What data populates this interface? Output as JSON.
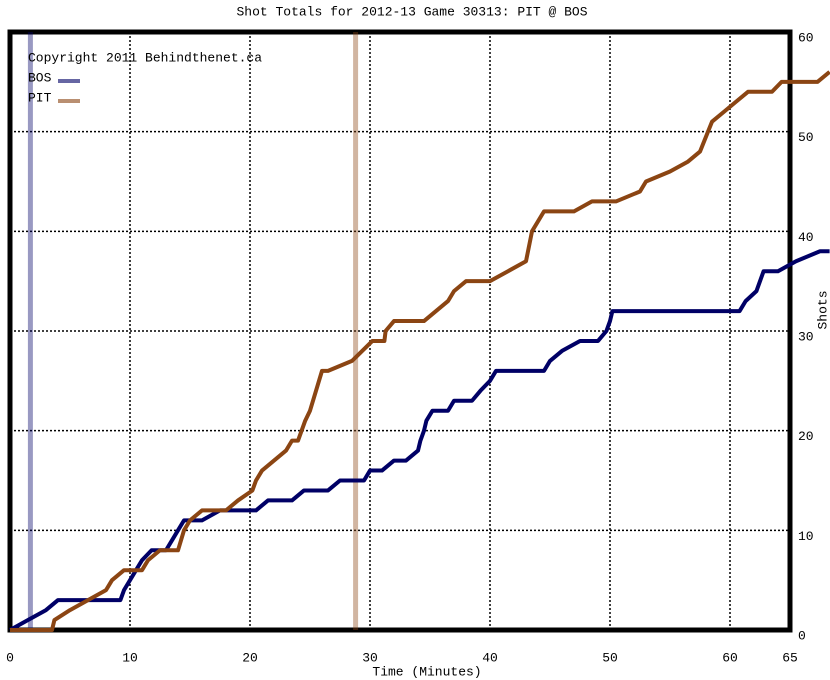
{
  "chart_data": {
    "type": "line",
    "title": "Shot Totals for 2012-13 Game 30313: PIT @ BOS",
    "x_label": "Time (Minutes)",
    "y_label": "Shots",
    "copyright": "Copyright 2011 Behindthenet.ca",
    "xlim": [
      0,
      65
    ],
    "xticks": [
      0,
      10,
      20,
      30,
      40,
      50,
      60,
      65
    ],
    "ylim": [
      0,
      60
    ],
    "yticks": [
      0,
      10,
      20,
      30,
      40,
      50,
      60
    ],
    "grid": true,
    "series": [
      {
        "name": "BOS",
        "color": "#000066",
        "goals": [
          1.7
        ],
        "x": [
          0,
          1.5,
          3,
          4,
          9.2,
          9.5,
          10,
          10.5,
          11,
          11.8,
          13,
          13.5,
          14,
          14.5,
          16,
          17.5,
          20.5,
          21.5,
          23.5,
          24.5,
          26.5,
          27.5,
          29.5,
          30,
          31,
          32,
          33,
          34,
          34.2,
          34.5,
          34.7,
          35.2,
          36.5,
          37,
          38.5,
          39.2,
          40,
          40.5,
          44.5,
          45,
          46,
          47.5,
          49,
          49.7,
          50,
          50.2,
          60.8,
          61.3,
          62.2,
          62.8,
          64,
          65.5,
          67.5,
          68.3
        ],
        "values": [
          0,
          1,
          2,
          3,
          3,
          4,
          5,
          6,
          7,
          8,
          8,
          9,
          10,
          11,
          11,
          12,
          12,
          13,
          13,
          14,
          14,
          15,
          15,
          16,
          16,
          17,
          17,
          18,
          19,
          20,
          21,
          22,
          22,
          23,
          23,
          24,
          25,
          26,
          26,
          27,
          28,
          29,
          29,
          30,
          31,
          32,
          32,
          33,
          34,
          36,
          36,
          37,
          38,
          38
        ]
      },
      {
        "name": "PIT",
        "color": "#8b4513",
        "goals": [
          28.8
        ],
        "x": [
          0,
          3.5,
          3.7,
          5,
          6.5,
          8,
          8.5,
          9.5,
          11,
          11.5,
          12.5,
          14,
          14.5,
          15,
          16,
          18,
          19,
          20.2,
          20.5,
          21,
          22,
          23,
          23.5,
          24,
          24.6,
          25,
          25.5,
          26,
          26.5,
          28.5,
          30.2,
          31.2,
          31.3,
          32,
          34.5,
          35.5,
          36.5,
          37,
          38,
          40,
          41.5,
          43,
          43.5,
          44.5,
          47,
          48.5,
          50.5,
          52.5,
          53,
          55,
          56.5,
          57.5,
          58.5,
          59.5,
          60.5,
          61.5,
          63.5,
          64.3,
          67.3,
          68.3
        ],
        "values": [
          0,
          0,
          1,
          2,
          3,
          4,
          5,
          6,
          6,
          7,
          8,
          8,
          10,
          11,
          12,
          12,
          13,
          14,
          15,
          16,
          17,
          18,
          19,
          19,
          21,
          22,
          24,
          26,
          26,
          27,
          29,
          29,
          30,
          31,
          31,
          32,
          33,
          34,
          35,
          35,
          36,
          37,
          40,
          42,
          42,
          43,
          43,
          44,
          45,
          46,
          47,
          48,
          51,
          52,
          53,
          54,
          54,
          55,
          55,
          56
        ]
      }
    ]
  }
}
